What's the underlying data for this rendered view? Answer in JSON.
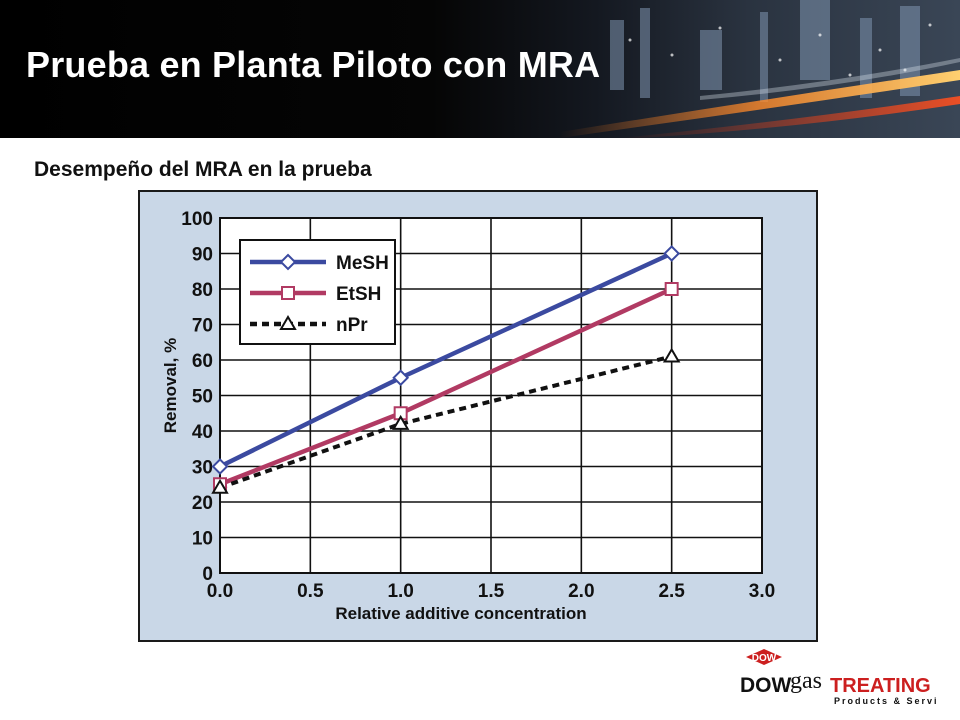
{
  "header": {
    "title": "Prueba en Planta Piloto con MRA",
    "subtitle": "Desempeño del MRA en la prueba"
  },
  "chart_data": {
    "type": "line",
    "xlabel": "Relative additive concentration",
    "ylabel": "Removal, %",
    "xlim": [
      0.0,
      3.0
    ],
    "ylim": [
      0,
      100
    ],
    "x_ticks": [
      "0.0",
      "0.5",
      "1.0",
      "1.5",
      "2.0",
      "2.5",
      "3.0"
    ],
    "y_ticks": [
      "0",
      "10",
      "20",
      "30",
      "40",
      "50",
      "60",
      "70",
      "80",
      "90",
      "100"
    ],
    "grid": true,
    "legend_position": "top-left",
    "series": [
      {
        "name": "MeSH",
        "color": "#3b4aa0",
        "marker": "diamond",
        "dash": "solid",
        "x": [
          0.0,
          1.0,
          2.5
        ],
        "y": [
          30,
          55,
          90
        ]
      },
      {
        "name": "EtSH",
        "color": "#b13a63",
        "marker": "square",
        "dash": "solid",
        "x": [
          0.0,
          1.0,
          2.5
        ],
        "y": [
          25,
          45,
          80
        ]
      },
      {
        "name": "nPr",
        "color": "#111111",
        "marker": "triangle",
        "dash": "dashed",
        "x": [
          0.0,
          1.0,
          2.5
        ],
        "y": [
          24,
          42,
          61
        ]
      }
    ]
  },
  "logo": {
    "badge": "DOW",
    "word1": "DOW",
    "word2": "gas",
    "word3": "TREATING",
    "tagline": "Products & Services",
    "color": "#cc1f1f"
  }
}
